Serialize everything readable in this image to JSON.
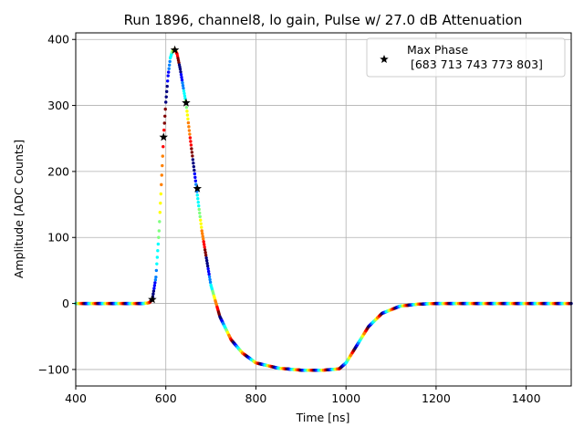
{
  "chart_data": {
    "type": "scatter",
    "title": "Run 1896, channel8, lo gain, Pulse w/ 27.0 dB Attenuation",
    "xlabel": "Time [ns]",
    "ylabel": "Amplitude [ADC Counts]",
    "xlim": [
      400,
      1500
    ],
    "ylim": [
      -125,
      410
    ],
    "xticks": [
      400,
      600,
      800,
      1000,
      1200,
      1400
    ],
    "yticks": [
      -100,
      0,
      100,
      200,
      300,
      400
    ],
    "grid": true,
    "legend": {
      "placement": "top-right",
      "entries": [
        {
          "label": "Max Phase",
          "sublabel": " [683 713 743 773 803]",
          "marker": "star",
          "color": "#000000"
        }
      ]
    },
    "waveform_knots": [
      [
        400,
        0
      ],
      [
        550,
        0
      ],
      [
        563,
        1
      ],
      [
        570,
        6
      ],
      [
        578,
        40
      ],
      [
        585,
        110
      ],
      [
        590,
        180
      ],
      [
        595,
        252
      ],
      [
        600,
        305
      ],
      [
        605,
        345
      ],
      [
        610,
        372
      ],
      [
        615,
        383
      ],
      [
        620,
        385
      ],
      [
        625,
        378
      ],
      [
        632,
        355
      ],
      [
        640,
        322
      ],
      [
        645,
        303
      ],
      [
        652,
        262
      ],
      [
        660,
        218
      ],
      [
        668,
        175
      ],
      [
        680,
        110
      ],
      [
        700,
        28
      ],
      [
        720,
        -20
      ],
      [
        745,
        -55
      ],
      [
        770,
        -75
      ],
      [
        800,
        -90
      ],
      [
        850,
        -98
      ],
      [
        900,
        -101
      ],
      [
        950,
        -101
      ],
      [
        985,
        -99
      ],
      [
        1000,
        -90
      ],
      [
        1020,
        -68
      ],
      [
        1050,
        -35
      ],
      [
        1080,
        -15
      ],
      [
        1120,
        -4
      ],
      [
        1160,
        -1
      ],
      [
        1200,
        0
      ],
      [
        1500,
        0
      ]
    ],
    "max_phase_points": [
      [
        570,
        6
      ],
      [
        595,
        252
      ],
      [
        620,
        384
      ],
      [
        645,
        304
      ],
      [
        670,
        174
      ]
    ],
    "colormap": [
      "#00007f",
      "#0000ff",
      "#0080ff",
      "#00ffff",
      "#7fff7f",
      "#ffff00",
      "#ff8000",
      "#ff0000",
      "#7f0000"
    ]
  }
}
